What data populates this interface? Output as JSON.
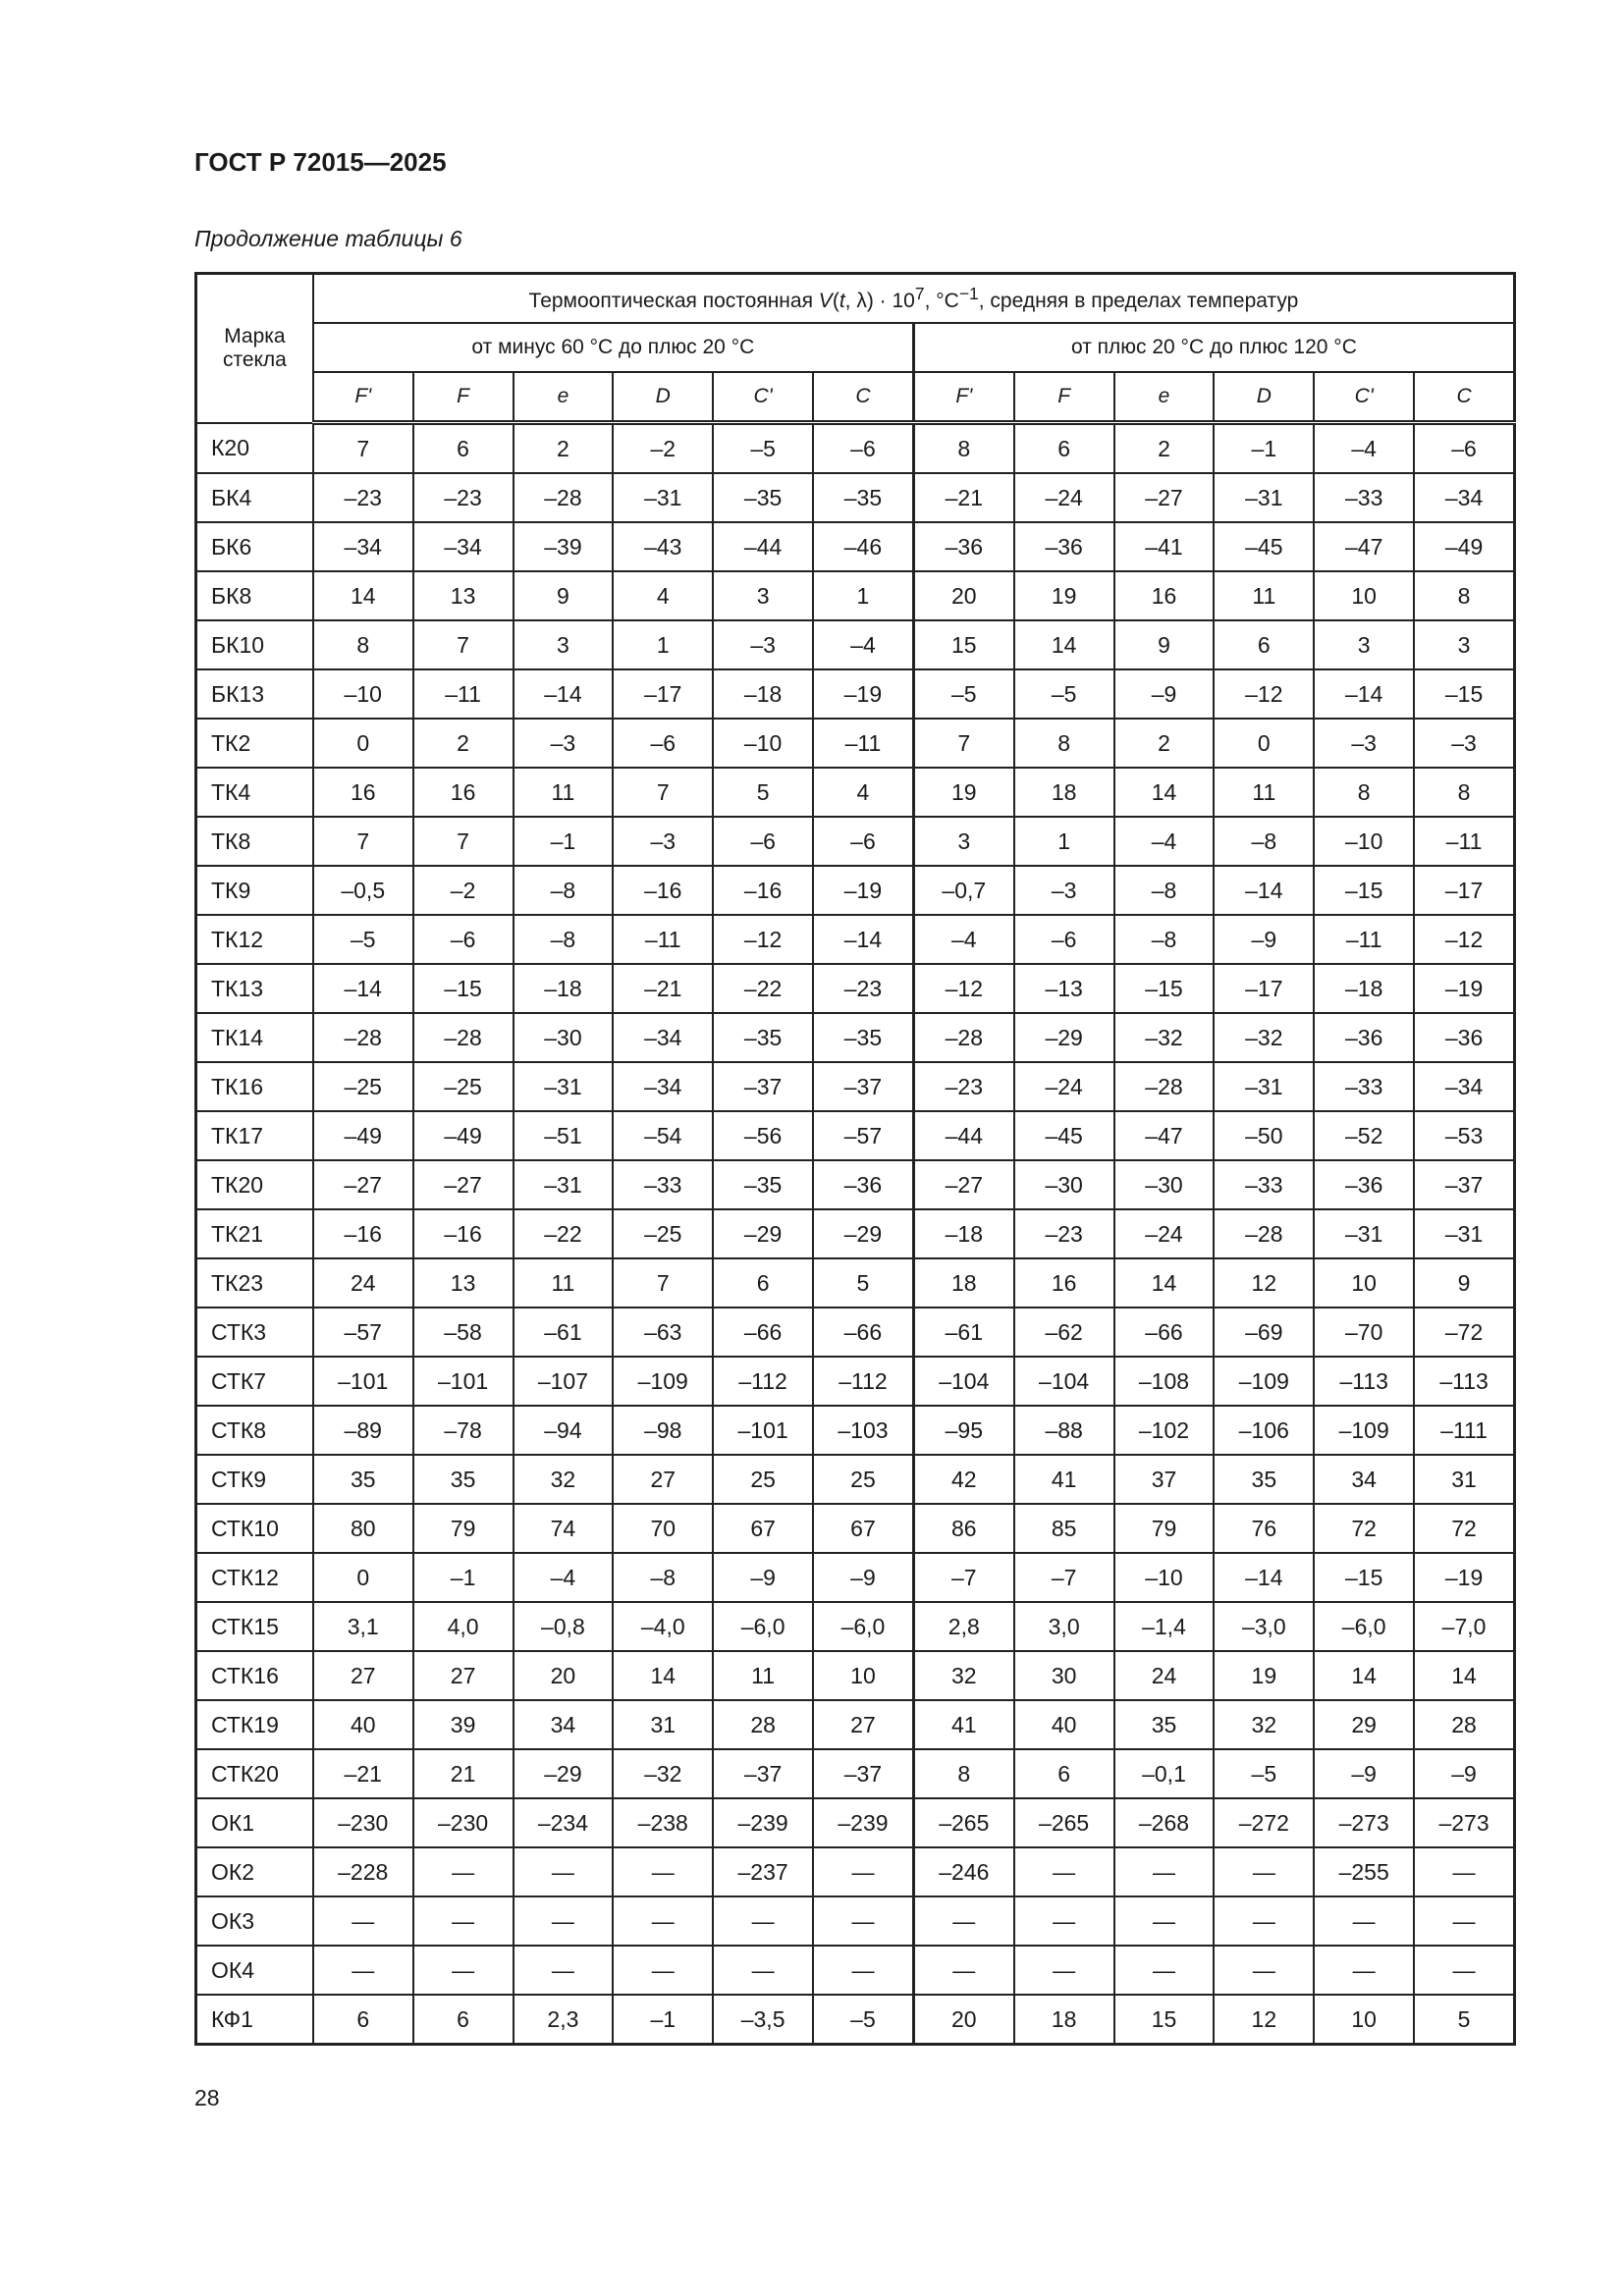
{
  "header": {
    "title": "ГОСТ Р 72015—2025"
  },
  "caption": "Продолжение таблицы 6",
  "table": {
    "col_mark": "Марка стекла",
    "main_header": {
      "prefix": "Термооптическая постоянная ",
      "v": "V",
      "paren_open": "(",
      "t": "t",
      "comma_lambda": ", λ) · 10",
      "exp7": "7",
      "unit": ", °C",
      "exp_m1": "−1",
      "suffix": ", средняя в пределах температур"
    },
    "ranges": [
      "от минус 60 °С до плюс 20 °С",
      "от плюс 20 °С до плюс 120 °С"
    ],
    "lines": [
      "F'",
      "F",
      "e",
      "D",
      "C'",
      "C",
      "F'",
      "F",
      "e",
      "D",
      "C'",
      "C"
    ],
    "rows": [
      {
        "mark": "К20",
        "values": [
          "7",
          "6",
          "2",
          "–2",
          "–5",
          "–6",
          "8",
          "6",
          "2",
          "–1",
          "–4",
          "–6"
        ]
      },
      {
        "mark": "БК4",
        "values": [
          "–23",
          "–23",
          "–28",
          "–31",
          "–35",
          "–35",
          "–21",
          "–24",
          "–27",
          "–31",
          "–33",
          "–34"
        ]
      },
      {
        "mark": "БК6",
        "values": [
          "–34",
          "–34",
          "–39",
          "–43",
          "–44",
          "–46",
          "–36",
          "–36",
          "–41",
          "–45",
          "–47",
          "–49"
        ]
      },
      {
        "mark": "БК8",
        "values": [
          "14",
          "13",
          "9",
          "4",
          "3",
          "1",
          "20",
          "19",
          "16",
          "11",
          "10",
          "8"
        ]
      },
      {
        "mark": "БК10",
        "values": [
          "8",
          "7",
          "3",
          "1",
          "–3",
          "–4",
          "15",
          "14",
          "9",
          "6",
          "3",
          "3"
        ]
      },
      {
        "mark": "БК13",
        "values": [
          "–10",
          "–11",
          "–14",
          "–17",
          "–18",
          "–19",
          "–5",
          "–5",
          "–9",
          "–12",
          "–14",
          "–15"
        ]
      },
      {
        "mark": "ТК2",
        "values": [
          "0",
          "2",
          "–3",
          "–6",
          "–10",
          "–11",
          "7",
          "8",
          "2",
          "0",
          "–3",
          "–3"
        ]
      },
      {
        "mark": "ТК4",
        "values": [
          "16",
          "16",
          "11",
          "7",
          "5",
          "4",
          "19",
          "18",
          "14",
          "11",
          "8",
          "8"
        ]
      },
      {
        "mark": "ТК8",
        "values": [
          "7",
          "7",
          "–1",
          "–3",
          "–6",
          "–6",
          "3",
          "1",
          "–4",
          "–8",
          "–10",
          "–11"
        ]
      },
      {
        "mark": "ТК9",
        "values": [
          "–0,5",
          "–2",
          "–8",
          "–16",
          "–16",
          "–19",
          "–0,7",
          "–3",
          "–8",
          "–14",
          "–15",
          "–17"
        ]
      },
      {
        "mark": "ТК12",
        "values": [
          "–5",
          "–6",
          "–8",
          "–11",
          "–12",
          "–14",
          "–4",
          "–6",
          "–8",
          "–9",
          "–11",
          "–12"
        ]
      },
      {
        "mark": "ТК13",
        "values": [
          "–14",
          "–15",
          "–18",
          "–21",
          "–22",
          "–23",
          "–12",
          "–13",
          "–15",
          "–17",
          "–18",
          "–19"
        ]
      },
      {
        "mark": "ТК14",
        "values": [
          "–28",
          "–28",
          "–30",
          "–34",
          "–35",
          "–35",
          "–28",
          "–29",
          "–32",
          "–32",
          "–36",
          "–36"
        ]
      },
      {
        "mark": "ТК16",
        "values": [
          "–25",
          "–25",
          "–31",
          "–34",
          "–37",
          "–37",
          "–23",
          "–24",
          "–28",
          "–31",
          "–33",
          "–34"
        ]
      },
      {
        "mark": "ТК17",
        "values": [
          "–49",
          "–49",
          "–51",
          "–54",
          "–56",
          "–57",
          "–44",
          "–45",
          "–47",
          "–50",
          "–52",
          "–53"
        ]
      },
      {
        "mark": "ТК20",
        "values": [
          "–27",
          "–27",
          "–31",
          "–33",
          "–35",
          "–36",
          "–27",
          "–30",
          "–30",
          "–33",
          "–36",
          "–37"
        ]
      },
      {
        "mark": "ТК21",
        "values": [
          "–16",
          "–16",
          "–22",
          "–25",
          "–29",
          "–29",
          "–18",
          "–23",
          "–24",
          "–28",
          "–31",
          "–31"
        ]
      },
      {
        "mark": "ТК23",
        "values": [
          "24",
          "13",
          "11",
          "7",
          "6",
          "5",
          "18",
          "16",
          "14",
          "12",
          "10",
          "9"
        ]
      },
      {
        "mark": "СТК3",
        "values": [
          "–57",
          "–58",
          "–61",
          "–63",
          "–66",
          "–66",
          "–61",
          "–62",
          "–66",
          "–69",
          "–70",
          "–72"
        ]
      },
      {
        "mark": "СТК7",
        "values": [
          "–101",
          "–101",
          "–107",
          "–109",
          "–112",
          "–112",
          "–104",
          "–104",
          "–108",
          "–109",
          "–113",
          "–113"
        ]
      },
      {
        "mark": "СТК8",
        "values": [
          "–89",
          "–78",
          "–94",
          "–98",
          "–101",
          "–103",
          "–95",
          "–88",
          "–102",
          "–106",
          "–109",
          "–111"
        ]
      },
      {
        "mark": "СТК9",
        "values": [
          "35",
          "35",
          "32",
          "27",
          "25",
          "25",
          "42",
          "41",
          "37",
          "35",
          "34",
          "31"
        ]
      },
      {
        "mark": "СТК10",
        "values": [
          "80",
          "79",
          "74",
          "70",
          "67",
          "67",
          "86",
          "85",
          "79",
          "76",
          "72",
          "72"
        ]
      },
      {
        "mark": "СТК12",
        "values": [
          "0",
          "–1",
          "–4",
          "–8",
          "–9",
          "–9",
          "–7",
          "–7",
          "–10",
          "–14",
          "–15",
          "–19"
        ]
      },
      {
        "mark": "СТК15",
        "values": [
          "3,1",
          "4,0",
          "–0,8",
          "–4,0",
          "–6,0",
          "–6,0",
          "2,8",
          "3,0",
          "–1,4",
          "–3,0",
          "–6,0",
          "–7,0"
        ]
      },
      {
        "mark": "СТК16",
        "values": [
          "27",
          "27",
          "20",
          "14",
          "11",
          "10",
          "32",
          "30",
          "24",
          "19",
          "14",
          "14"
        ]
      },
      {
        "mark": "СТК19",
        "values": [
          "40",
          "39",
          "34",
          "31",
          "28",
          "27",
          "41",
          "40",
          "35",
          "32",
          "29",
          "28"
        ]
      },
      {
        "mark": "СТК20",
        "values": [
          "–21",
          "21",
          "–29",
          "–32",
          "–37",
          "–37",
          "8",
          "6",
          "–0,1",
          "–5",
          "–9",
          "–9"
        ]
      },
      {
        "mark": "ОК1",
        "values": [
          "–230",
          "–230",
          "–234",
          "–238",
          "–239",
          "–239",
          "–265",
          "–265",
          "–268",
          "–272",
          "–273",
          "–273"
        ]
      },
      {
        "mark": "ОК2",
        "values": [
          "–228",
          "—",
          "—",
          "—",
          "–237",
          "—",
          "–246",
          "—",
          "—",
          "—",
          "–255",
          "—"
        ]
      },
      {
        "mark": "ОК3",
        "values": [
          "—",
          "—",
          "—",
          "—",
          "—",
          "—",
          "—",
          "—",
          "—",
          "—",
          "—",
          "—"
        ]
      },
      {
        "mark": "ОК4",
        "values": [
          "—",
          "—",
          "—",
          "—",
          "—",
          "—",
          "—",
          "—",
          "—",
          "—",
          "—",
          "—"
        ]
      },
      {
        "mark": "КФ1",
        "values": [
          "6",
          "6",
          "2,3",
          "–1",
          "–3,5",
          "–5",
          "20",
          "18",
          "15",
          "12",
          "10",
          "5"
        ]
      }
    ]
  },
  "footer": {
    "page_number": "28"
  }
}
